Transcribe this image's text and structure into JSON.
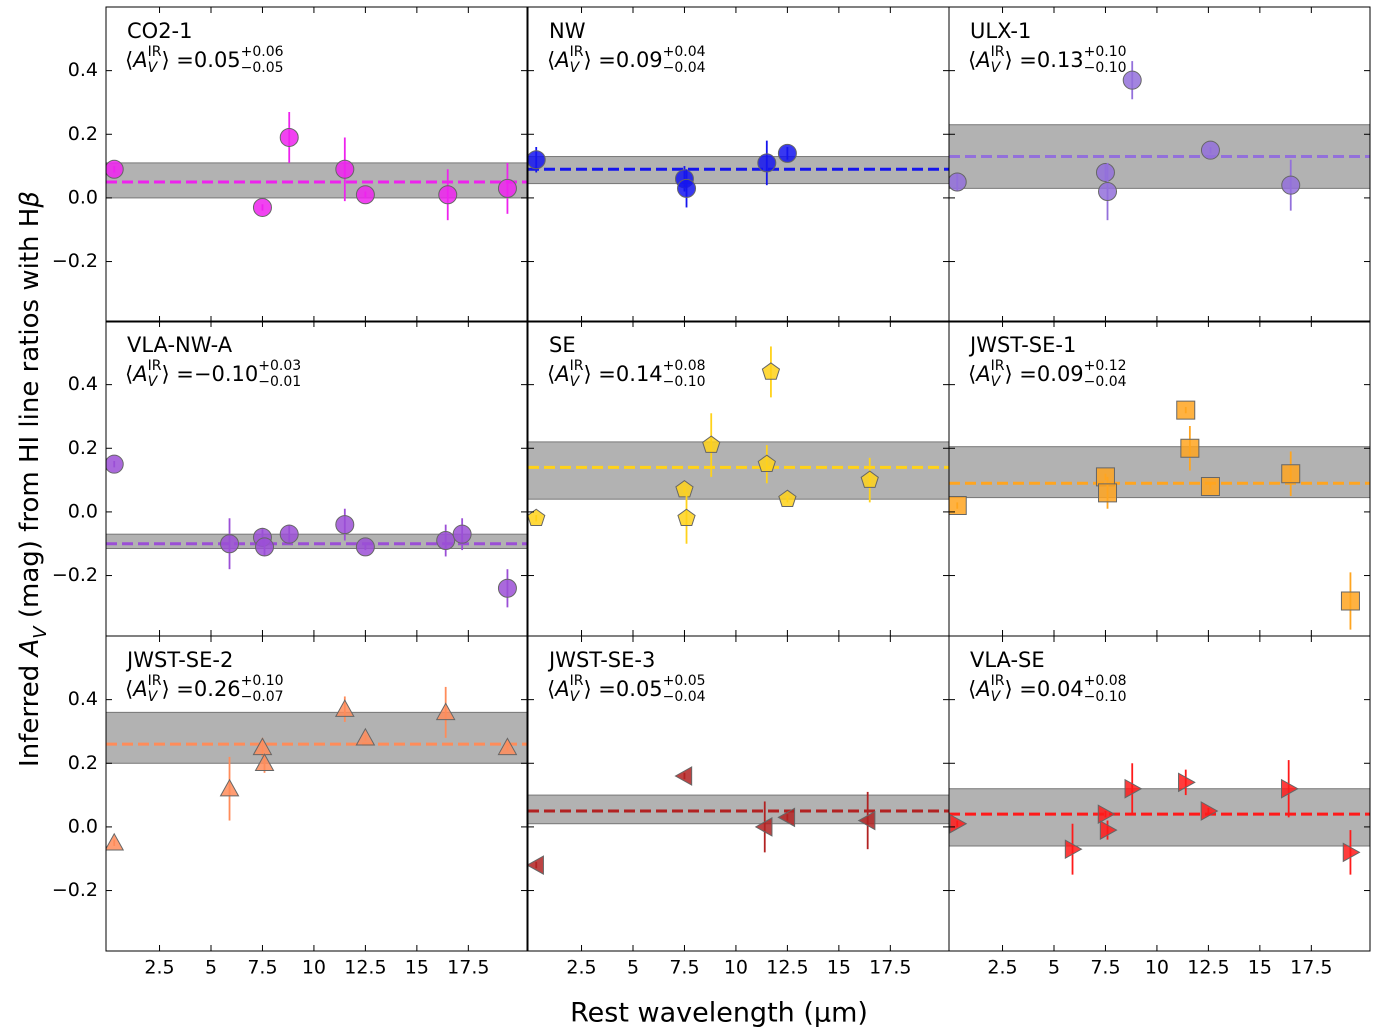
{
  "chart_data": {
    "type": "scatter",
    "xlabel": "Rest wavelength (μm)",
    "ylabel_pre": "Inferred ",
    "ylabel_sym": "A",
    "ylabel_sub": "V",
    "ylabel_post": " (mag) from HI line ratios with H",
    "ylabel_greek": "β",
    "stat_open": "⟨",
    "stat_sym": "A",
    "stat_sub": "V",
    "stat_sup": "IR",
    "stat_close": "⟩ = ",
    "xlim": [
      -0.1,
      20.35
    ],
    "ylim": [
      -0.39,
      0.6
    ],
    "xticks": [
      2.5,
      5,
      7.5,
      10,
      12.5,
      15,
      17.5
    ],
    "yticks": [
      {
        "value": -0.2,
        "label": "−0.2"
      },
      {
        "value": 0,
        "label": "0.0"
      },
      {
        "value": 0.2,
        "label": "0.2"
      },
      {
        "value": 0.4,
        "label": "0.4"
      }
    ],
    "panels": [
      {
        "title": "CO2-1",
        "color": "#ee22ee",
        "marker": "circle",
        "x": [
          0.3,
          7.5,
          8.8,
          11.5,
          12.5,
          16.5,
          19.4
        ],
        "values": [
          0.09,
          -0.03,
          0.19,
          0.09,
          0.01,
          0.01,
          0.03
        ],
        "errors": [
          0.01,
          0.01,
          0.08,
          0.1,
          0.01,
          0.08,
          0.08
        ],
        "mean": 0.05,
        "mean_label": "0.05",
        "err_plus": "+0.06",
        "err_minus": "−0.05",
        "band": [
          0.0,
          0.11
        ]
      },
      {
        "title": "NW",
        "color": "#1515ee",
        "marker": "circle",
        "x": [
          0.3,
          7.5,
          7.6,
          11.5,
          12.5
        ],
        "values": [
          0.12,
          0.06,
          0.03,
          0.11,
          0.14
        ],
        "errors": [
          0.04,
          0.04,
          0.06,
          0.07,
          0.02
        ],
        "mean": 0.09,
        "mean_label": "0.09",
        "err_plus": "+0.04",
        "err_minus": "−0.04",
        "band": [
          0.045,
          0.13
        ]
      },
      {
        "title": "ULX-1",
        "color": "#9370db",
        "marker": "circle",
        "x": [
          0.3,
          7.5,
          7.6,
          8.8,
          12.6,
          16.5
        ],
        "values": [
          0.05,
          0.08,
          0.02,
          0.37,
          0.15,
          0.04
        ],
        "errors": [
          0.03,
          0.03,
          0.09,
          0.06,
          0.01,
          0.08
        ],
        "mean": 0.13,
        "mean_label": "0.13",
        "err_plus": "+0.10",
        "err_minus": "−0.10",
        "band": [
          0.03,
          0.23
        ]
      },
      {
        "title": "VLA-NW-A",
        "color": "#9b4fd6",
        "marker": "circle",
        "x": [
          0.3,
          5.9,
          7.5,
          7.6,
          8.8,
          11.5,
          12.5,
          16.4,
          17.2,
          19.4
        ],
        "values": [
          0.15,
          -0.1,
          -0.08,
          -0.11,
          -0.07,
          -0.04,
          -0.11,
          -0.09,
          -0.07,
          -0.24
        ],
        "errors": [
          0.01,
          0.08,
          0.03,
          0.03,
          0.03,
          0.05,
          0.01,
          0.05,
          0.05,
          0.06
        ],
        "mean": -0.1,
        "mean_label": " −0.10",
        "err_plus": "+0.03",
        "err_minus": "−0.01",
        "band": [
          -0.115,
          -0.07
        ]
      },
      {
        "title": "SE",
        "color": "#ffd21a",
        "marker": "pentagon",
        "x": [
          0.3,
          7.5,
          7.6,
          8.8,
          11.5,
          11.7,
          12.5,
          16.5
        ],
        "values": [
          -0.02,
          0.07,
          -0.02,
          0.21,
          0.15,
          0.44,
          0.04,
          0.1
        ],
        "errors": [
          0.01,
          0.01,
          0.08,
          0.1,
          0.06,
          0.08,
          0.01,
          0.07
        ],
        "mean": 0.14,
        "mean_label": "0.14",
        "err_plus": "+0.08",
        "err_minus": "−0.10",
        "band": [
          0.04,
          0.22
        ]
      },
      {
        "title": "JWST-SE-1",
        "color": "#ffa520",
        "marker": "square",
        "x": [
          0.3,
          7.5,
          7.6,
          11.4,
          11.6,
          12.6,
          16.5,
          19.4
        ],
        "values": [
          0.02,
          0.11,
          0.06,
          0.32,
          0.2,
          0.08,
          0.12,
          -0.28
        ],
        "errors": [
          0.01,
          0.01,
          0.05,
          0.01,
          0.07,
          0.01,
          0.07,
          0.09
        ],
        "mean": 0.09,
        "mean_label": "0.09",
        "err_plus": "+0.12",
        "err_minus": "−0.04",
        "band": [
          0.045,
          0.205
        ]
      },
      {
        "title": "JWST-SE-2",
        "color": "#ff8c5a",
        "marker": "triangle-up",
        "x": [
          0.3,
          5.9,
          7.5,
          7.6,
          11.5,
          12.5,
          16.4,
          19.4
        ],
        "values": [
          -0.05,
          0.12,
          0.25,
          0.2,
          0.37,
          0.28,
          0.36,
          0.25
        ],
        "errors": [
          0.01,
          0.1,
          0.03,
          0.03,
          0.04,
          0.01,
          0.08,
          0.01
        ],
        "mean": 0.26,
        "mean_label": "0.26",
        "err_plus": "+0.10",
        "err_minus": "−0.07",
        "band": [
          0.2,
          0.36
        ]
      },
      {
        "title": "JWST-SE-3",
        "color": "#b22222",
        "marker": "triangle-left",
        "x": [
          0.3,
          7.5,
          11.4,
          12.5,
          16.4
        ],
        "values": [
          -0.12,
          0.16,
          0.0,
          0.03,
          0.02
        ],
        "errors": [
          0.01,
          0.01,
          0.08,
          0.01,
          0.09
        ],
        "mean": 0.05,
        "mean_label": "0.05",
        "err_plus": "+0.05",
        "err_minus": "−0.04",
        "band": [
          0.01,
          0.1
        ]
      },
      {
        "title": "VLA-SE",
        "color": "#ff1a1a",
        "marker": "triangle-right",
        "x": [
          0.3,
          5.9,
          7.5,
          7.6,
          8.8,
          11.4,
          12.5,
          16.4,
          19.4
        ],
        "values": [
          0.01,
          -0.07,
          0.04,
          -0.01,
          0.12,
          0.14,
          0.05,
          0.12,
          -0.08
        ],
        "errors": [
          0.01,
          0.08,
          0.01,
          0.03,
          0.08,
          0.04,
          0.01,
          0.09,
          0.07
        ],
        "mean": 0.04,
        "mean_label": "0.04",
        "err_plus": "+0.08",
        "err_minus": "−0.10",
        "band": [
          -0.06,
          0.12
        ]
      }
    ]
  }
}
